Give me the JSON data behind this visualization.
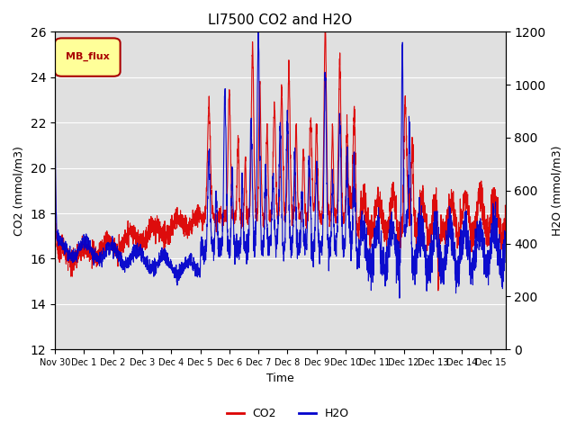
{
  "title": "LI7500 CO2 and H2O",
  "xlabel": "Time",
  "ylabel_left": "CO2 (mmol/m3)",
  "ylabel_right": "H2O (mmol/m3)",
  "ylim_left": [
    12,
    26
  ],
  "ylim_right": [
    0,
    1200
  ],
  "yticks_left": [
    12,
    14,
    16,
    18,
    20,
    22,
    24,
    26
  ],
  "yticks_right": [
    0,
    200,
    400,
    600,
    800,
    1000,
    1200
  ],
  "co2_color": "#dd0000",
  "h2o_color": "#0000cc",
  "bg_color": "#e0e0e0",
  "legend_label": "MB_flux",
  "legend_box_color": "#ffff99",
  "legend_box_border": "#aa0000",
  "xstart_days": 0,
  "xend_days": 15.5,
  "num_points": 3000
}
